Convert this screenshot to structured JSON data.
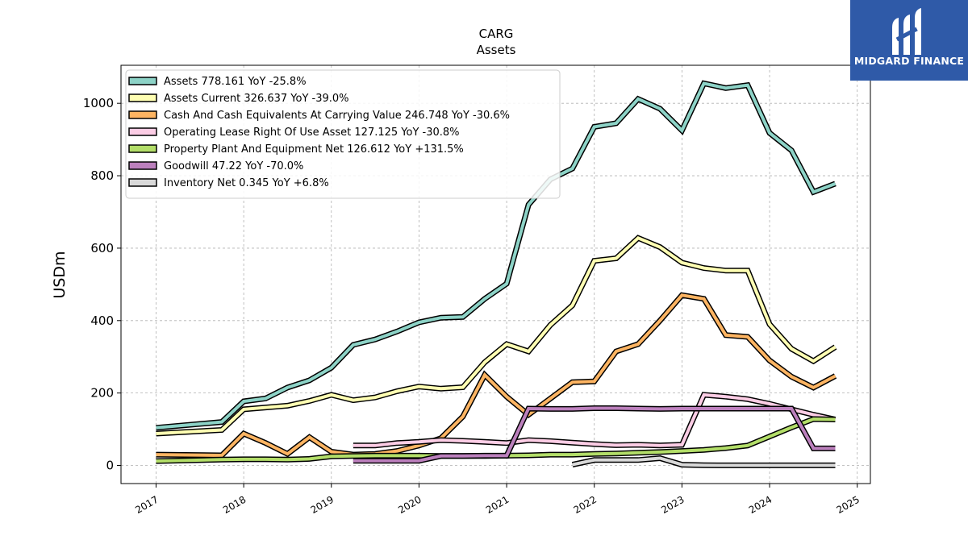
{
  "logo": {
    "text": "MIDGARD FINANCE"
  },
  "chart_data": {
    "type": "line",
    "title": "CARG",
    "subtitle": "Assets",
    "xlabel": "",
    "ylabel": "USDm",
    "xlim": [
      2016.6,
      2025.15
    ],
    "ylim": [
      -50,
      1105
    ],
    "x_ticks": [
      2017,
      2018,
      2019,
      2020,
      2021,
      2022,
      2023,
      2024,
      2025
    ],
    "y_ticks": [
      0,
      200,
      400,
      600,
      800,
      1000
    ],
    "grid": true,
    "legend_position": "top-left",
    "series": [
      {
        "name": "Assets  778.161 YoY -25.8%",
        "color": "#8dd3c7",
        "x": [
          2017.0,
          2017.75,
          2018.0,
          2018.25,
          2018.5,
          2018.75,
          2019.0,
          2019.25,
          2019.5,
          2019.75,
          2020.0,
          2020.25,
          2020.5,
          2020.75,
          2021.0,
          2021.25,
          2021.5,
          2021.75,
          2022.0,
          2022.25,
          2022.5,
          2022.75,
          2023.0,
          2023.25,
          2023.5,
          2023.75,
          2024.0,
          2024.25,
          2024.5,
          2024.75
        ],
        "y": [
          104,
          120,
          177,
          185,
          215,
          235,
          270,
          333,
          348,
          370,
          395,
          408,
          410,
          460,
          502,
          720,
          790,
          820,
          935,
          945,
          1012,
          985,
          925,
          1055,
          1042,
          1050,
          918,
          870,
          755,
          778
        ]
      },
      {
        "name": "Assets Current  326.637 YoY -39.0%",
        "color": "#ffffb3",
        "x": [
          2017.0,
          2017.75,
          2018.0,
          2018.25,
          2018.5,
          2018.75,
          2019.0,
          2019.25,
          2019.5,
          2019.75,
          2020.0,
          2020.25,
          2020.5,
          2020.75,
          2021.0,
          2021.25,
          2021.5,
          2021.75,
          2022.0,
          2022.25,
          2022.5,
          2022.75,
          2023.0,
          2023.25,
          2023.5,
          2023.75,
          2024.0,
          2024.25,
          2024.5,
          2024.75
        ],
        "y": [
          88,
          98,
          155,
          160,
          165,
          178,
          195,
          180,
          188,
          205,
          218,
          212,
          216,
          285,
          335,
          315,
          388,
          442,
          565,
          572,
          628,
          603,
          560,
          545,
          538,
          538,
          390,
          322,
          288,
          327
        ]
      },
      {
        "name": "Cash And Cash Equivalents At Carrying Value  246.748 YoY -30.6%",
        "color": "#fdb462",
        "x": [
          2017.0,
          2017.75,
          2018.0,
          2018.25,
          2018.5,
          2018.75,
          2019.0,
          2019.25,
          2019.5,
          2019.75,
          2020.0,
          2020.25,
          2020.5,
          2020.75,
          2021.0,
          2021.25,
          2021.5,
          2021.75,
          2022.0,
          2022.25,
          2022.5,
          2022.75,
          2023.0,
          2023.25,
          2023.5,
          2023.75,
          2024.0,
          2024.25,
          2024.5,
          2024.75
        ],
        "y": [
          30,
          28,
          88,
          62,
          32,
          78,
          38,
          30,
          32,
          40,
          55,
          75,
          135,
          250,
          190,
          140,
          185,
          230,
          232,
          315,
          335,
          400,
          470,
          460,
          360,
          355,
          290,
          245,
          215,
          247
        ]
      },
      {
        "name": "Operating Lease Right Of Use Asset  127.125 YoY -30.8%",
        "color": "#fccde5",
        "x": [
          2019.25,
          2019.5,
          2019.75,
          2020.0,
          2020.25,
          2020.5,
          2020.75,
          2021.0,
          2021.25,
          2021.5,
          2021.75,
          2022.0,
          2022.25,
          2022.5,
          2022.75,
          2023.0,
          2023.25,
          2023.5,
          2023.75,
          2024.0,
          2024.25,
          2024.5,
          2024.75
        ],
        "y": [
          55,
          55,
          62,
          65,
          70,
          68,
          65,
          62,
          70,
          67,
          63,
          59,
          56,
          57,
          55,
          57,
          195,
          190,
          183,
          170,
          155,
          140,
          127
        ]
      },
      {
        "name": "Property Plant And Equipment Net  126.612 YoY +131.5%",
        "color": "#b3de69",
        "x": [
          2017.0,
          2017.75,
          2018.0,
          2018.25,
          2018.5,
          2018.75,
          2019.0,
          2019.25,
          2019.5,
          2019.75,
          2020.0,
          2020.25,
          2020.5,
          2020.75,
          2021.0,
          2021.25,
          2021.5,
          2021.75,
          2022.0,
          2022.25,
          2022.5,
          2022.75,
          2023.0,
          2023.25,
          2023.5,
          2023.75,
          2024.0,
          2024.25,
          2024.5,
          2024.75
        ],
        "y": [
          12,
          16,
          17,
          17,
          16,
          18,
          25,
          26,
          27,
          27,
          27,
          26,
          26,
          26,
          27,
          28,
          30,
          30,
          32,
          33,
          35,
          37,
          40,
          43,
          48,
          55,
          80,
          105,
          128,
          127
        ]
      },
      {
        "name": "Goodwill  47.22 YoY -70.0%",
        "color": "#bc80bd",
        "x": [
          2019.25,
          2019.5,
          2019.75,
          2020.0,
          2020.25,
          2020.5,
          2020.75,
          2021.0,
          2021.25,
          2021.5,
          2021.75,
          2022.0,
          2022.25,
          2022.5,
          2022.75,
          2023.0,
          2023.25,
          2023.5,
          2023.75,
          2024.0,
          2024.25,
          2024.5,
          2024.75
        ],
        "y": [
          13,
          13,
          13,
          13,
          26,
          26,
          27,
          27,
          157,
          156,
          156,
          158,
          158,
          157,
          156,
          157,
          157,
          157,
          157,
          157,
          157,
          47,
          47
        ]
      },
      {
        "name": "Inventory Net  0.345 YoY +6.8%",
        "color": "#d9d9d9",
        "x": [
          2021.75,
          2022.0,
          2022.25,
          2022.5,
          2022.75,
          2023.0,
          2023.25,
          2023.5,
          2023.75,
          2024.0,
          2024.25,
          2024.5,
          2024.75
        ],
        "y": [
          2,
          15,
          15,
          15,
          20,
          2,
          0.5,
          0.3,
          0.3,
          0.3,
          0.3,
          0.3,
          0.345
        ]
      }
    ]
  }
}
